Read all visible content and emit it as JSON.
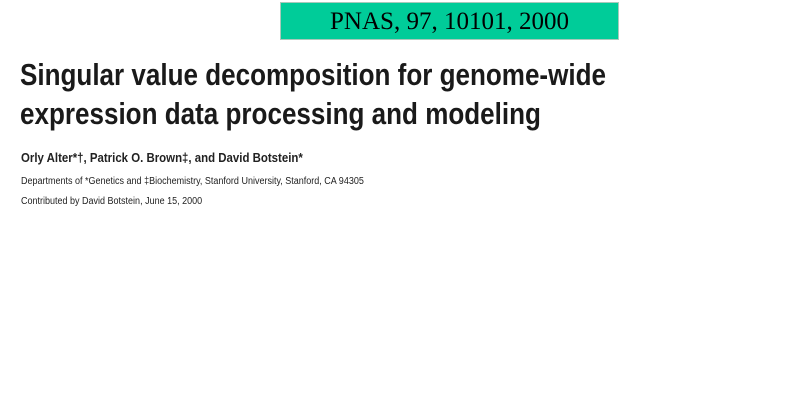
{
  "citation": "PNAS, 97, 10101, 2000",
  "colors": {
    "citation_background": "#00cc99"
  },
  "title_lines": [
    "Singular value decomposition for genome-wide",
    "expression data processing and modeling"
  ],
  "authors": "Orly Alter*†, Patrick O. Brown‡, and David Botstein*",
  "affiliation": "Departments of *Genetics and ‡Biochemistry, Stanford University, Stanford, CA 94305",
  "contributed": "Contributed by David Botstein, June 15, 2000"
}
